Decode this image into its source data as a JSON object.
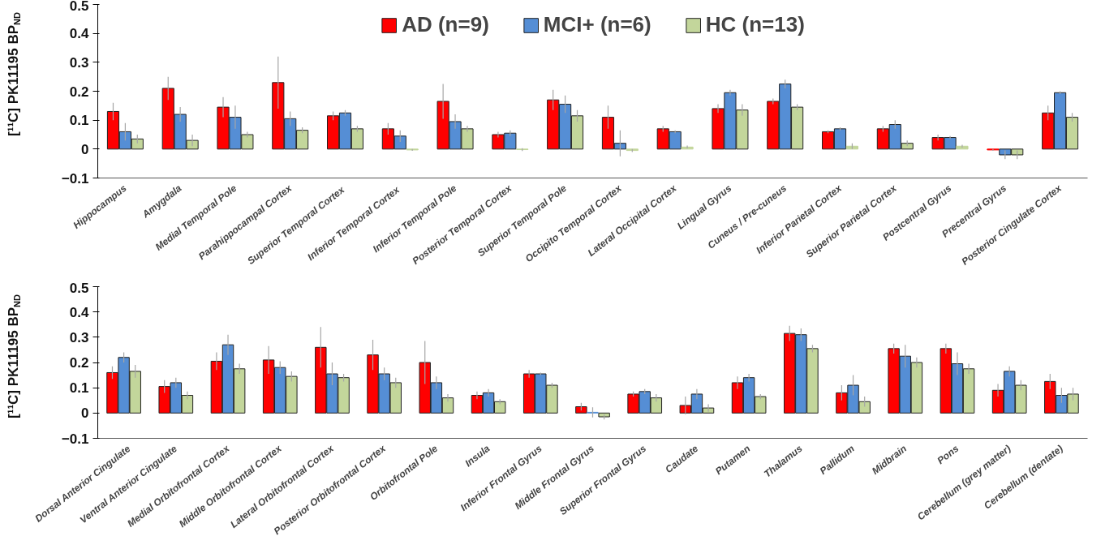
{
  "chart_data": [
    {
      "type": "bar",
      "ylabel": "[¹¹C] PK11195 BP$_{ND}$",
      "legend": "top",
      "grid": false,
      "ylim": [
        -0.1,
        0.5
      ],
      "yticks": [
        -0.1,
        0,
        0.1,
        0.2,
        0.3,
        0.4,
        0.5
      ],
      "categories": [
        "Hippocampus",
        "Amygdala",
        "Medial Temporal Pole",
        "Parahippocampal Cortex",
        "Superior Temporal  Cortex",
        "Inferior Temporal  Cortex",
        "Inferior Temporal Pole",
        "Posterior Temporal Cortex",
        "Superior Temporal Pole",
        "Occipito Temporal Cortex",
        "Lateral Occipital Cortex",
        "Lingual Gyrus",
        "Cuneus / Pre-cuneus",
        "Inferior Parietal Cortex",
        "Superior Parietal Cortex",
        "Postcentral Gyrus",
        "Precentral Gyrus",
        "Posterior Cingulate Cortex"
      ],
      "series": [
        {
          "name": "AD (n=9)",
          "color": "#ff0000",
          "values": [
            0.13,
            0.21,
            0.145,
            0.23,
            0.115,
            0.07,
            0.165,
            0.05,
            0.17,
            0.11,
            0.07,
            0.14,
            0.165,
            0.06,
            0.07,
            0.04,
            -0.003,
            0.125
          ],
          "errors": [
            0.03,
            0.04,
            0.035,
            0.09,
            0.015,
            0.02,
            0.06,
            0.01,
            0.035,
            0.04,
            0.01,
            0.015,
            0.01,
            0.005,
            0.01,
            0.01,
            0.003,
            0.025
          ]
        },
        {
          "name": "MCI+ (n=6)",
          "color": "#558ed5",
          "values": [
            0.06,
            0.12,
            0.11,
            0.105,
            0.125,
            0.045,
            0.095,
            0.055,
            0.155,
            0.02,
            0.06,
            0.195,
            0.225,
            0.07,
            0.085,
            0.04,
            -0.02,
            0.195
          ],
          "errors": [
            0.03,
            0.025,
            0.04,
            0.025,
            0.01,
            0.02,
            0.025,
            0.01,
            0.03,
            0.045,
            0.005,
            0.01,
            0.015,
            0.005,
            0.015,
            0.005,
            0.015,
            0.005
          ]
        },
        {
          "name": "HC (n=13)",
          "color": "#c3d69b",
          "values": [
            0.035,
            0.03,
            0.05,
            0.065,
            0.07,
            -0.003,
            0.07,
            -0.002,
            0.115,
            -0.005,
            0.007,
            0.135,
            0.145,
            0.01,
            0.02,
            0.01,
            -0.02,
            0.11
          ],
          "errors": [
            0.015,
            0.02,
            0.01,
            0.01,
            0.01,
            0.003,
            0.01,
            0.005,
            0.02,
            0.005,
            0.005,
            0.02,
            0.01,
            0.01,
            0.01,
            0.005,
            0.015,
            0.015
          ]
        }
      ]
    },
    {
      "type": "bar",
      "ylabel": "[¹¹C] PK11195 BP$_{ND}$",
      "grid": false,
      "ylim": [
        -0.1,
        0.5
      ],
      "yticks": [
        -0.1,
        0,
        0.1,
        0.2,
        0.3,
        0.4,
        0.5
      ],
      "categories": [
        "Dorsal Anterior Cingulate",
        "Ventral Anterior Cingulate",
        "Medial Orbitofrontal Cortex",
        "Middle Orbitofrontal Cortex",
        "Lateral Orbitofrontal Cortex",
        "Posterior Orbitofrontal Cortex",
        "Orbitofrontal Pole",
        "Insula",
        "Inferior Frontal Gyrus",
        "Middle Frontal Gyrus",
        "Superior Frontal Gyrus",
        "Caudate",
        "Putamen",
        "Thalamus",
        "Pallidum",
        "Midbrain",
        "Pons",
        "Cerebellum (grey matter)",
        "Cerebellum (dentate)"
      ],
      "series": [
        {
          "color": "#ff0000",
          "values": [
            0.16,
            0.105,
            0.205,
            0.21,
            0.26,
            0.23,
            0.2,
            0.07,
            0.155,
            0.025,
            0.075,
            0.03,
            0.12,
            0.315,
            0.08,
            0.255,
            0.255,
            0.09,
            0.125
          ],
          "errors": [
            0.025,
            0.025,
            0.035,
            0.055,
            0.08,
            0.06,
            0.085,
            0.015,
            0.015,
            0.015,
            0.01,
            0.035,
            0.025,
            0.03,
            0.03,
            0.02,
            0.02,
            0.025,
            0.03
          ]
        },
        {
          "color": "#558ed5",
          "values": [
            0.22,
            0.12,
            0.27,
            0.18,
            0.155,
            0.155,
            0.12,
            0.08,
            0.155,
            0.003,
            0.085,
            0.075,
            0.14,
            0.31,
            0.11,
            0.225,
            0.195,
            0.165,
            0.07
          ],
          "errors": [
            0.02,
            0.02,
            0.04,
            0.025,
            0.045,
            0.025,
            0.025,
            0.015,
            0.005,
            0.02,
            0.01,
            0.02,
            0.015,
            0.025,
            0.04,
            0.045,
            0.045,
            0.02,
            0.03
          ]
        },
        {
          "color": "#c3d69b",
          "values": [
            0.165,
            0.07,
            0.175,
            0.145,
            0.14,
            0.12,
            0.06,
            0.045,
            0.11,
            -0.015,
            0.06,
            0.02,
            0.065,
            0.255,
            0.045,
            0.2,
            0.175,
            0.11,
            0.075
          ],
          "errors": [
            0.025,
            0.015,
            0.02,
            0.02,
            0.015,
            0.02,
            0.015,
            0.01,
            0.01,
            0.01,
            0.015,
            0.015,
            0.01,
            0.015,
            0.02,
            0.02,
            0.02,
            0.02,
            0.025
          ]
        }
      ]
    }
  ]
}
